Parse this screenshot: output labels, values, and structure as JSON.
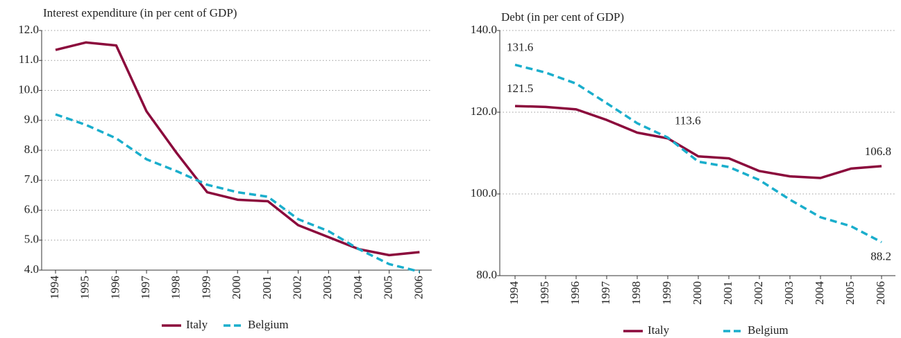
{
  "chart_data": [
    {
      "type": "line",
      "title": "Interest expenditure (in per cent of GDP)",
      "categories": [
        "1994",
        "1995",
        "1996",
        "1997",
        "1998",
        "1999",
        "2000",
        "2001",
        "2002",
        "2003",
        "2004",
        "2005",
        "2006"
      ],
      "series": [
        {
          "name": "Italy",
          "color": "#8b0a3c",
          "values": [
            11.35,
            11.6,
            11.5,
            9.3,
            7.9,
            6.6,
            6.35,
            6.3,
            5.5,
            5.1,
            4.7,
            4.5,
            4.6
          ]
        },
        {
          "name": "Belgium",
          "color": "#1aaecc",
          "values": [
            9.2,
            8.85,
            8.4,
            7.7,
            7.3,
            6.85,
            6.6,
            6.45,
            5.7,
            5.3,
            4.7,
            4.2,
            3.95
          ]
        }
      ],
      "ylim": [
        4,
        12
      ],
      "yticks": [
        {
          "value": 4,
          "label": "4.0"
        },
        {
          "value": 5,
          "label": "5.0"
        },
        {
          "value": 6,
          "label": "6.0"
        },
        {
          "value": 7,
          "label": "7.0"
        },
        {
          "value": 8,
          "label": "8.0"
        },
        {
          "value": 9,
          "label": "9.0"
        },
        {
          "value": 10,
          "label": "10.0"
        },
        {
          "value": 11,
          "label": "11.0"
        },
        {
          "value": 12,
          "label": "12.0"
        }
      ],
      "grid": true,
      "legend": "bottom"
    },
    {
      "type": "line",
      "title": "Debt (in per cent of GDP)",
      "categories": [
        "1994",
        "1995",
        "1996",
        "1997",
        "1998",
        "1999",
        "2000",
        "2001",
        "2002",
        "2003",
        "2004",
        "2005",
        "2006"
      ],
      "series": [
        {
          "name": "Italy",
          "color": "#8b0a3c",
          "values": [
            121.5,
            121.3,
            120.7,
            118.1,
            115.0,
            113.6,
            109.2,
            108.7,
            105.6,
            104.3,
            103.9,
            106.2,
            106.8
          ],
          "value_labels": [
            "121.5",
            null,
            null,
            null,
            null,
            "113.6",
            null,
            null,
            null,
            null,
            null,
            null,
            "106.8"
          ]
        },
        {
          "name": "Belgium",
          "color": "#1aaecc",
          "values": [
            131.6,
            129.7,
            127.0,
            122.2,
            117.3,
            113.8,
            107.9,
            106.6,
            103.4,
            98.6,
            94.3,
            92.1,
            88.2
          ],
          "value_labels": [
            "131.6",
            null,
            null,
            null,
            null,
            null,
            null,
            null,
            null,
            null,
            null,
            null,
            "88.2"
          ]
        }
      ],
      "ylim": [
        80,
        140
      ],
      "yticks": [
        {
          "value": 80,
          "label": "80.0"
        },
        {
          "value": 100,
          "label": "100.0"
        },
        {
          "value": 120,
          "label": "120.0"
        },
        {
          "value": 140,
          "label": "140.0"
        }
      ],
      "grid": true,
      "legend": "bottom"
    }
  ]
}
